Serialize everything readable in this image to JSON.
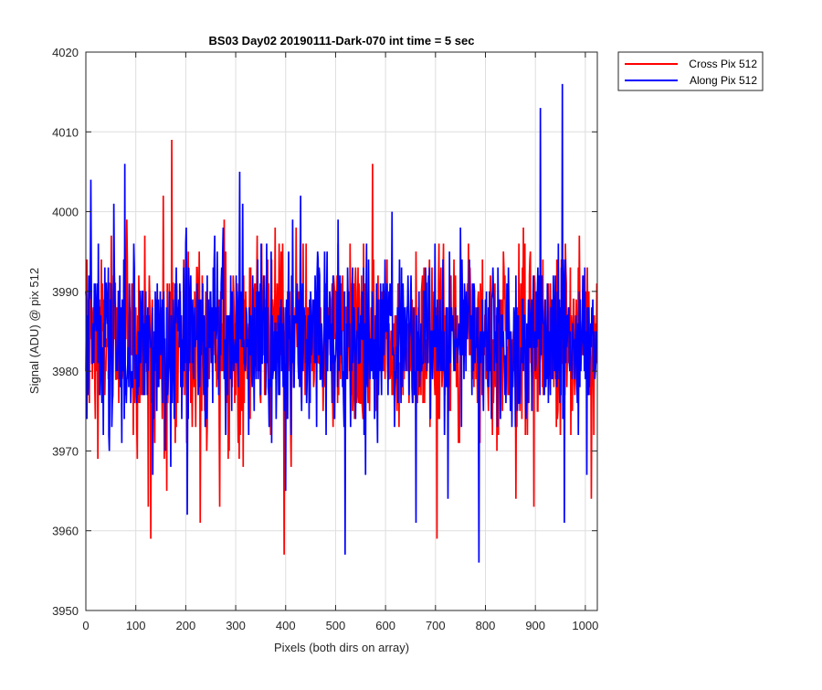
{
  "chart_data": {
    "type": "line",
    "title": "BS03 Day02 20190111-Dark-070 int time = 5 sec",
    "xlabel": "Pixels (both dirs on array)",
    "ylabel": "Signal (ADU) @ pix 512",
    "xlim": [
      0,
      1024
    ],
    "ylim": [
      3950,
      4020
    ],
    "x_ticks": [
      0,
      100,
      200,
      300,
      400,
      500,
      600,
      700,
      800,
      900,
      1000
    ],
    "x_tick_labels": [
      "0",
      "100",
      "200",
      "300",
      "400",
      "500",
      "600",
      "700",
      "800",
      "900",
      "1000"
    ],
    "y_ticks": [
      3950,
      3960,
      3970,
      3980,
      3990,
      4000,
      4010,
      4020
    ],
    "y_tick_labels": [
      "3950",
      "3960",
      "3970",
      "3980",
      "3990",
      "4000",
      "4010",
      "4020"
    ],
    "grid": true,
    "legend_position": "outside top-right",
    "series": [
      {
        "name": "Cross Pix 512",
        "color": "#ff0000",
        "x_start": 0,
        "x_step": 1,
        "count": 1024,
        "baseline": 3984,
        "noise_sigma": 5.5,
        "peaks": [
          {
            "x": 24,
            "y": 3969
          },
          {
            "x": 82,
            "y": 3999
          },
          {
            "x": 125,
            "y": 3963
          },
          {
            "x": 130,
            "y": 3959
          },
          {
            "x": 138,
            "y": 3971
          },
          {
            "x": 155,
            "y": 4002
          },
          {
            "x": 162,
            "y": 3965
          },
          {
            "x": 172,
            "y": 4009
          },
          {
            "x": 229,
            "y": 3961
          },
          {
            "x": 268,
            "y": 3963
          },
          {
            "x": 397,
            "y": 3957
          },
          {
            "x": 565,
            "y": 3976
          },
          {
            "x": 574,
            "y": 4006
          },
          {
            "x": 703,
            "y": 3959
          },
          {
            "x": 861,
            "y": 3964
          },
          {
            "x": 880,
            "y": 3972
          },
          {
            "x": 897,
            "y": 3963
          },
          {
            "x": 1012,
            "y": 3964
          }
        ]
      },
      {
        "name": "Along Pix 512",
        "color": "#0000ff",
        "x_start": 0,
        "x_step": 1,
        "count": 1024,
        "baseline": 3984,
        "noise_sigma": 5.5,
        "peaks": [
          {
            "x": 10,
            "y": 4004
          },
          {
            "x": 78,
            "y": 4006
          },
          {
            "x": 134,
            "y": 3967
          },
          {
            "x": 170,
            "y": 3968
          },
          {
            "x": 203,
            "y": 3962
          },
          {
            "x": 308,
            "y": 4005
          },
          {
            "x": 400,
            "y": 3965
          },
          {
            "x": 430,
            "y": 4002
          },
          {
            "x": 519,
            "y": 3957
          },
          {
            "x": 560,
            "y": 3967
          },
          {
            "x": 661,
            "y": 3961
          },
          {
            "x": 725,
            "y": 3964
          },
          {
            "x": 787,
            "y": 3956
          },
          {
            "x": 830,
            "y": 3974
          },
          {
            "x": 910,
            "y": 4013
          },
          {
            "x": 954,
            "y": 4016
          },
          {
            "x": 958,
            "y": 3961
          },
          {
            "x": 1003,
            "y": 3967
          }
        ]
      }
    ]
  }
}
